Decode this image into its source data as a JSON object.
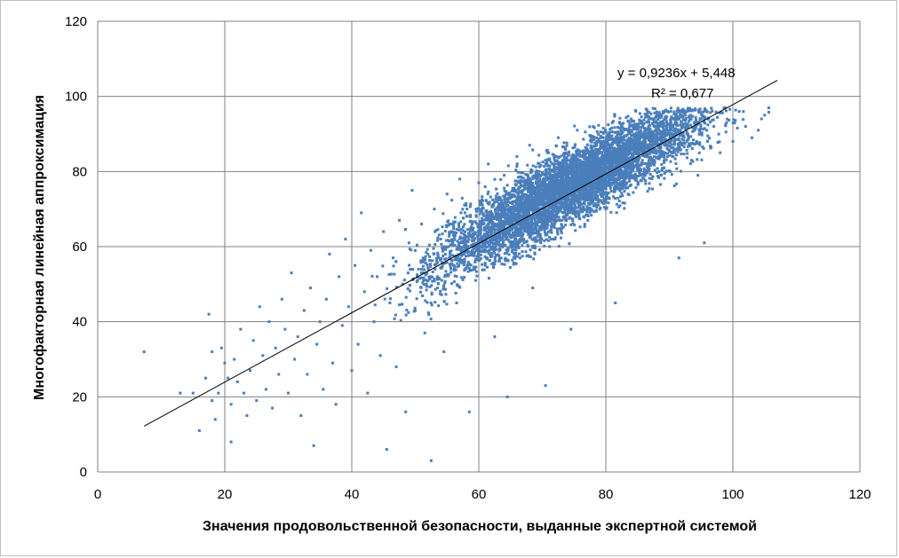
{
  "chart_data": {
    "type": "scatter",
    "title": "",
    "xlabel": "Значения продовольственной  безопасности, выданные экспертной системой",
    "ylabel": "Многофакторная линейная аппроксимация",
    "xlim": [
      0,
      120
    ],
    "ylim": [
      0,
      120
    ],
    "xticks": [
      0,
      20,
      40,
      60,
      80,
      100,
      120
    ],
    "yticks": [
      0,
      20,
      40,
      60,
      80,
      100,
      120
    ],
    "grid": true,
    "legend": "none",
    "point_color": "#4a7ebb",
    "trendline": {
      "slope": 0.9236,
      "intercept": 5.448,
      "x_range": [
        7.3,
        107
      ],
      "color": "#000000"
    },
    "trend_equation": "y = 0,9236x + 5,448",
    "r_squared_label": "R² = 0,677",
    "points": [
      [
        7.3,
        32.0
      ],
      [
        13,
        21
      ],
      [
        15,
        21
      ],
      [
        16,
        11
      ],
      [
        17,
        25
      ],
      [
        17.5,
        42
      ],
      [
        18,
        32
      ],
      [
        18,
        19
      ],
      [
        18.5,
        14
      ],
      [
        19,
        21
      ],
      [
        19.5,
        33
      ],
      [
        20,
        29
      ],
      [
        20.5,
        25
      ],
      [
        21,
        8
      ],
      [
        21,
        18
      ],
      [
        21.5,
        30
      ],
      [
        22,
        24
      ],
      [
        22.5,
        38
      ],
      [
        23,
        21
      ],
      [
        23.5,
        15
      ],
      [
        24,
        27
      ],
      [
        24.5,
        35
      ],
      [
        25,
        19
      ],
      [
        25.5,
        44
      ],
      [
        26,
        31
      ],
      [
        26.5,
        22
      ],
      [
        27,
        40
      ],
      [
        27.5,
        17
      ],
      [
        28,
        33
      ],
      [
        28.5,
        26
      ],
      [
        29,
        46
      ],
      [
        29.5,
        38
      ],
      [
        30,
        21
      ],
      [
        30.5,
        53
      ],
      [
        31,
        30
      ],
      [
        31.5,
        36
      ],
      [
        32,
        15
      ],
      [
        32.5,
        43
      ],
      [
        33,
        26
      ],
      [
        33.5,
        49
      ],
      [
        34,
        7
      ],
      [
        34.5,
        34
      ],
      [
        35,
        40
      ],
      [
        35.5,
        22
      ],
      [
        36,
        46
      ],
      [
        36.5,
        58
      ],
      [
        37,
        29
      ],
      [
        37.5,
        18
      ],
      [
        38,
        52
      ],
      [
        38.5,
        39
      ],
      [
        39,
        62
      ],
      [
        39.5,
        44
      ],
      [
        40,
        27
      ],
      [
        40.5,
        55
      ],
      [
        41,
        34
      ],
      [
        41.5,
        69
      ],
      [
        42,
        48
      ],
      [
        42.5,
        21
      ],
      [
        43,
        59
      ],
      [
        43.5,
        40
      ],
      [
        44,
        52
      ],
      [
        44.5,
        31
      ],
      [
        45,
        64
      ],
      [
        45.5,
        6
      ],
      [
        46,
        45
      ],
      [
        46.5,
        57
      ],
      [
        47,
        28
      ],
      [
        47.5,
        67
      ],
      [
        48,
        50
      ],
      [
        48.5,
        16
      ],
      [
        49,
        61
      ],
      [
        49.5,
        75
      ],
      [
        50,
        43
      ],
      [
        50.5,
        54
      ],
      [
        51,
        66
      ],
      [
        51.5,
        37
      ],
      [
        52,
        58
      ],
      [
        52.5,
        3
      ],
      [
        53,
        70
      ],
      [
        53.5,
        49
      ],
      [
        54,
        62
      ],
      [
        54.5,
        32
      ],
      [
        55,
        74
      ],
      [
        55.5,
        55
      ],
      [
        56,
        66
      ],
      [
        56.5,
        45
      ],
      [
        57,
        78
      ],
      [
        57.5,
        59
      ],
      [
        58,
        71
      ],
      [
        58.5,
        16
      ],
      [
        59,
        63
      ],
      [
        59.5,
        51
      ],
      [
        60,
        77
      ],
      [
        60.5,
        66
      ],
      [
        61,
        55
      ],
      [
        61.5,
        82
      ],
      [
        62,
        68
      ],
      [
        62.5,
        36
      ],
      [
        63,
        73
      ],
      [
        63.5,
        60
      ],
      [
        64,
        79
      ],
      [
        64.5,
        20
      ],
      [
        65,
        70
      ],
      [
        65.5,
        63
      ],
      [
        66,
        84
      ],
      [
        66.5,
        57
      ],
      [
        67,
        75
      ],
      [
        67.5,
        68
      ],
      [
        68,
        87
      ],
      [
        68.5,
        49
      ],
      [
        69,
        72
      ],
      [
        69.5,
        80
      ],
      [
        70,
        66
      ],
      [
        70.5,
        23
      ],
      [
        71,
        85
      ],
      [
        71.5,
        75
      ],
      [
        72,
        62
      ],
      [
        72.5,
        89
      ],
      [
        73,
        78
      ],
      [
        73.5,
        70
      ],
      [
        74,
        83
      ],
      [
        74.5,
        38
      ],
      [
        75,
        76
      ],
      [
        75.5,
        91
      ],
      [
        76,
        81
      ],
      [
        76.5,
        68
      ],
      [
        77,
        86
      ],
      [
        77.5,
        74
      ],
      [
        78,
        92
      ],
      [
        78.5,
        82
      ],
      [
        79,
        77
      ],
      [
        79.5,
        88
      ],
      [
        80,
        70
      ],
      [
        80.5,
        84
      ],
      [
        81,
        93
      ],
      [
        81.5,
        45
      ],
      [
        82,
        79
      ],
      [
        82.5,
        89
      ],
      [
        83,
        85
      ],
      [
        83.5,
        74
      ],
      [
        84,
        94
      ],
      [
        84.5,
        87
      ],
      [
        85,
        81
      ],
      [
        85.5,
        91
      ],
      [
        86,
        78
      ],
      [
        86.5,
        95
      ],
      [
        87,
        88
      ],
      [
        87.5,
        82
      ],
      [
        88,
        92
      ],
      [
        88.5,
        86
      ],
      [
        89,
        96
      ],
      [
        89.5,
        80
      ],
      [
        90,
        90
      ],
      [
        90.5,
        84
      ],
      [
        91,
        93
      ],
      [
        91.5,
        57
      ],
      [
        92,
        87
      ],
      [
        92.5,
        95
      ],
      [
        93,
        89
      ],
      [
        93.5,
        83
      ],
      [
        94,
        91
      ],
      [
        94.5,
        79
      ],
      [
        95,
        94
      ],
      [
        95.5,
        61
      ],
      [
        96,
        88
      ],
      [
        97,
        92
      ],
      [
        98,
        85
      ],
      [
        99,
        93
      ],
      [
        100,
        88
      ],
      [
        101,
        96
      ],
      [
        102,
        92
      ],
      [
        103,
        89
      ],
      [
        104,
        91
      ],
      [
        104.5,
        94
      ],
      [
        105,
        95
      ]
    ]
  },
  "colors": {
    "points": "#4a7ebb",
    "grid": "#808080",
    "trend": "#000000",
    "background": "#ffffff"
  }
}
